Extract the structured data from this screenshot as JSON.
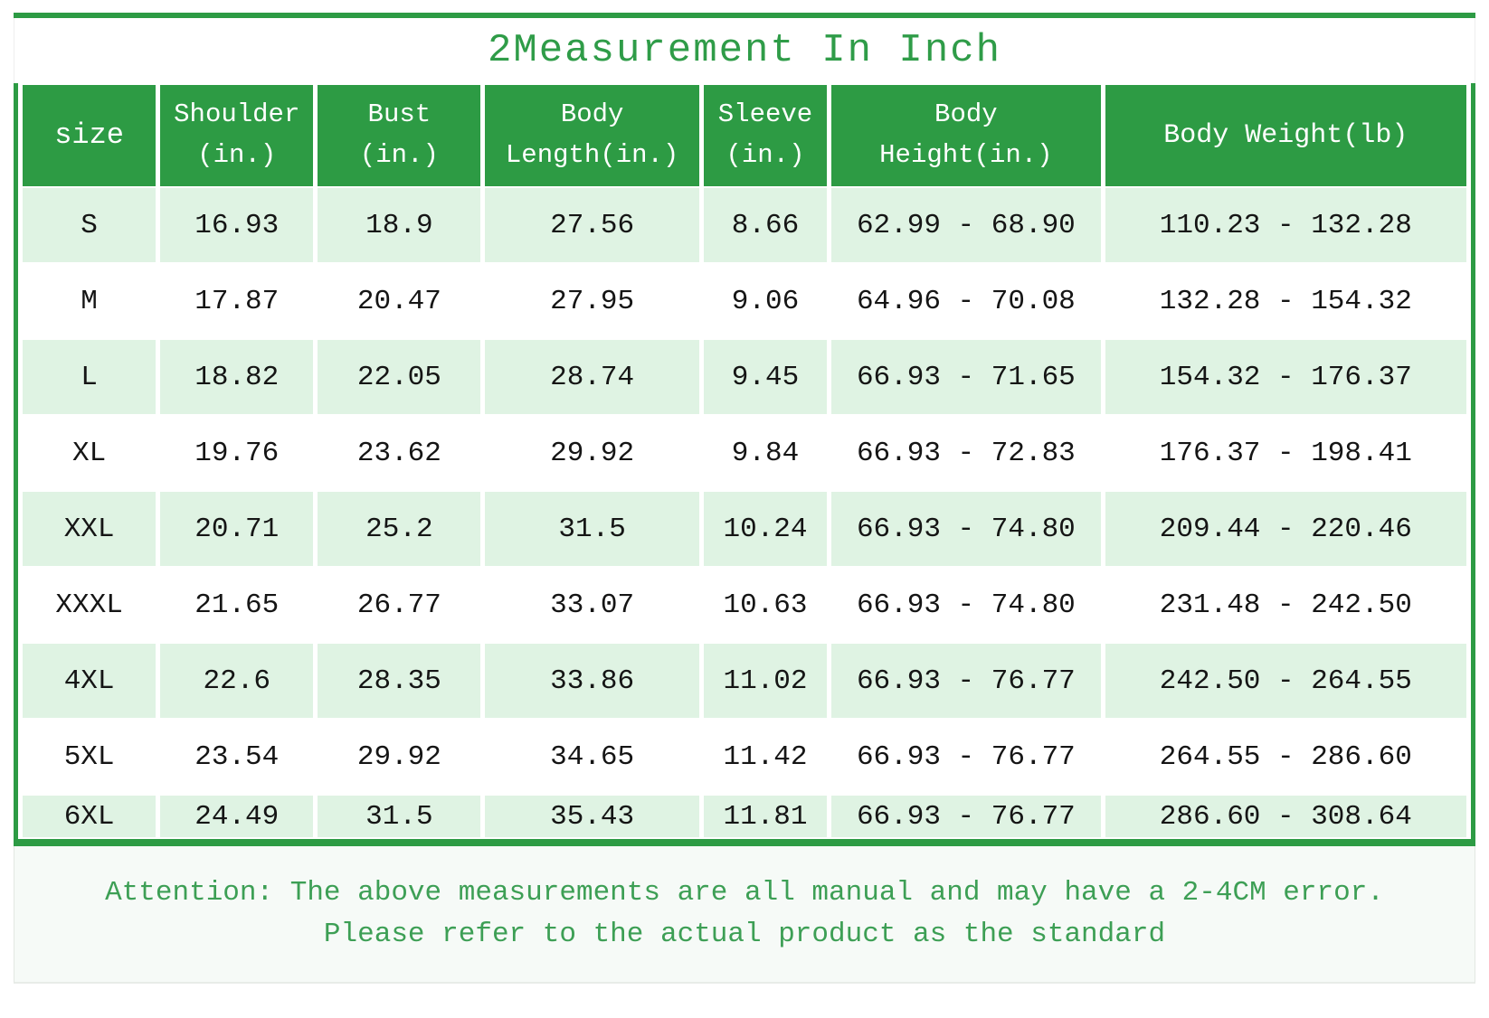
{
  "title": "2Measurement In Inch",
  "colors": {
    "header_green": "#2d9b44",
    "row_green": "#dff3e3",
    "border_green": "#2d9b44",
    "title_green": "#2f9c48",
    "note_green": "#3d9f55",
    "cell_text": "#151515",
    "note_bg": "#f6faf7"
  },
  "chart_data": {
    "type": "table",
    "title": "2Measurement In Inch",
    "columns": [
      "size",
      "Shoulder\n(in.)",
      "Bust\n(in.)",
      "Body\nLength(in.)",
      "Sleeve\n(in.)",
      "Body\nHeight(in.)",
      "Body Weight(lb)"
    ],
    "rows": [
      [
        "S",
        "16.93",
        "18.9",
        "27.56",
        "8.66",
        "62.99 - 68.90",
        "110.23 - 132.28"
      ],
      [
        "M",
        "17.87",
        "20.47",
        "27.95",
        "9.06",
        "64.96 - 70.08",
        "132.28 - 154.32"
      ],
      [
        "L",
        "18.82",
        "22.05",
        "28.74",
        "9.45",
        "66.93 - 71.65",
        "154.32 - 176.37"
      ],
      [
        "XL",
        "19.76",
        "23.62",
        "29.92",
        "9.84",
        "66.93 - 72.83",
        "176.37 - 198.41"
      ],
      [
        "XXL",
        "20.71",
        "25.2",
        "31.5",
        "10.24",
        "66.93 - 74.80",
        "209.44 - 220.46"
      ],
      [
        "XXXL",
        "21.65",
        "26.77",
        "33.07",
        "10.63",
        "66.93 - 74.80",
        "231.48 - 242.50"
      ],
      [
        "4XL",
        "22.6",
        "28.35",
        "33.86",
        "11.02",
        "66.93 - 76.77",
        "242.50 - 264.55"
      ],
      [
        "5XL",
        "23.54",
        "29.92",
        "34.65",
        "11.42",
        "66.93 - 76.77",
        "264.55 - 286.60"
      ],
      [
        "6XL",
        "24.49",
        "31.5",
        "35.43",
        "11.81",
        "66.93 - 76.77",
        "286.60 - 308.64"
      ]
    ]
  },
  "note": {
    "line1": "Attention: The above measurements are all manual and may have a 2-4CM error.",
    "line2": "Please refer to the actual product as the standard"
  }
}
